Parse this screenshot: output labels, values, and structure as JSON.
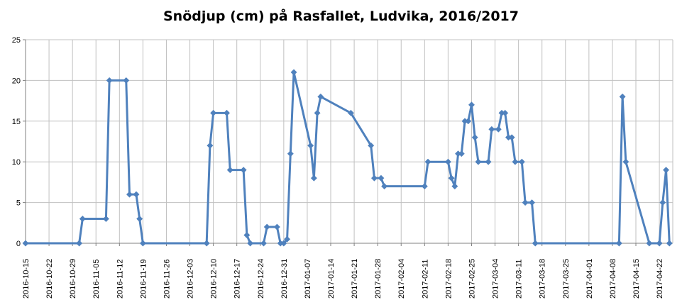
{
  "chart_data": {
    "type": "line",
    "title": "Snödjup (cm) på Rasfallet, Ludvika, 2016/2017",
    "xlabel": "",
    "ylabel": "",
    "ylim": [
      0,
      25
    ],
    "yticks": [
      0,
      5,
      10,
      15,
      20,
      25
    ],
    "xlim": [
      "2016-10-15",
      "2017-04-26"
    ],
    "xticks": [
      "2016-10-15",
      "2016-10-22",
      "2016-10-29",
      "2016-11-05",
      "2016-11-12",
      "2016-11-19",
      "2016-11-26",
      "2016-12-03",
      "2016-12-10",
      "2016-12-17",
      "2016-12-24",
      "2016-12-31",
      "2017-01-07",
      "2017-01-14",
      "2017-01-21",
      "2017-01-28",
      "2017-02-04",
      "2017-02-11",
      "2017-02-18",
      "2017-02-25",
      "2017-03-04",
      "2017-03-11",
      "2017-03-18",
      "2017-03-25",
      "2017-04-01",
      "2017-04-08",
      "2017-04-15",
      "2017-04-22"
    ],
    "grid": true,
    "legend": "none",
    "series_color": "#4F81BD",
    "grid_color": "#C0C0C0",
    "series": [
      {
        "x": [
          "2016-10-15",
          "2016-10-31",
          "2016-11-01",
          "2016-11-08",
          "2016-11-09",
          "2016-11-14",
          "2016-11-15",
          "2016-11-17",
          "2016-11-18",
          "2016-11-19",
          "2016-12-08",
          "2016-12-09",
          "2016-12-10",
          "2016-12-14",
          "2016-12-15",
          "2016-12-19",
          "2016-12-20",
          "2016-12-21",
          "2016-12-25",
          "2016-12-26",
          "2016-12-29",
          "2016-12-30",
          "2016-12-31",
          "2017-01-01",
          "2017-01-02",
          "2017-01-03",
          "2017-01-08",
          "2017-01-09",
          "2017-01-10",
          "2017-01-11",
          "2017-01-20",
          "2017-01-26",
          "2017-01-27",
          "2017-01-29",
          "2017-01-30",
          "2017-02-11",
          "2017-02-12",
          "2017-02-18",
          "2017-02-19",
          "2017-02-20",
          "2017-02-21",
          "2017-02-22",
          "2017-02-23",
          "2017-02-24",
          "2017-02-25",
          "2017-02-26",
          "2017-02-27",
          "2017-03-02",
          "2017-03-03",
          "2017-03-05",
          "2017-03-06",
          "2017-03-07",
          "2017-03-08",
          "2017-03-09",
          "2017-03-10",
          "2017-03-12",
          "2017-03-13",
          "2017-03-15",
          "2017-03-16",
          "2017-04-10",
          "2017-04-11",
          "2017-04-12",
          "2017-04-19",
          "2017-04-22",
          "2017-04-23",
          "2017-04-24",
          "2017-04-25"
        ],
        "y": [
          0,
          0,
          3,
          3,
          20,
          20,
          6,
          6,
          3,
          0,
          0,
          12,
          16,
          16,
          9,
          9,
          1,
          0,
          0,
          2,
          2,
          0,
          0,
          0.5,
          11,
          21,
          12,
          8,
          16,
          18,
          16,
          12,
          8,
          8,
          7,
          7,
          10,
          10,
          8,
          7,
          11,
          11,
          15,
          15,
          17,
          13,
          10,
          10,
          14,
          14,
          16,
          16,
          13,
          13,
          10,
          10,
          5,
          5,
          0,
          0,
          18,
          10,
          0,
          0,
          5,
          9,
          0
        ]
      }
    ]
  }
}
